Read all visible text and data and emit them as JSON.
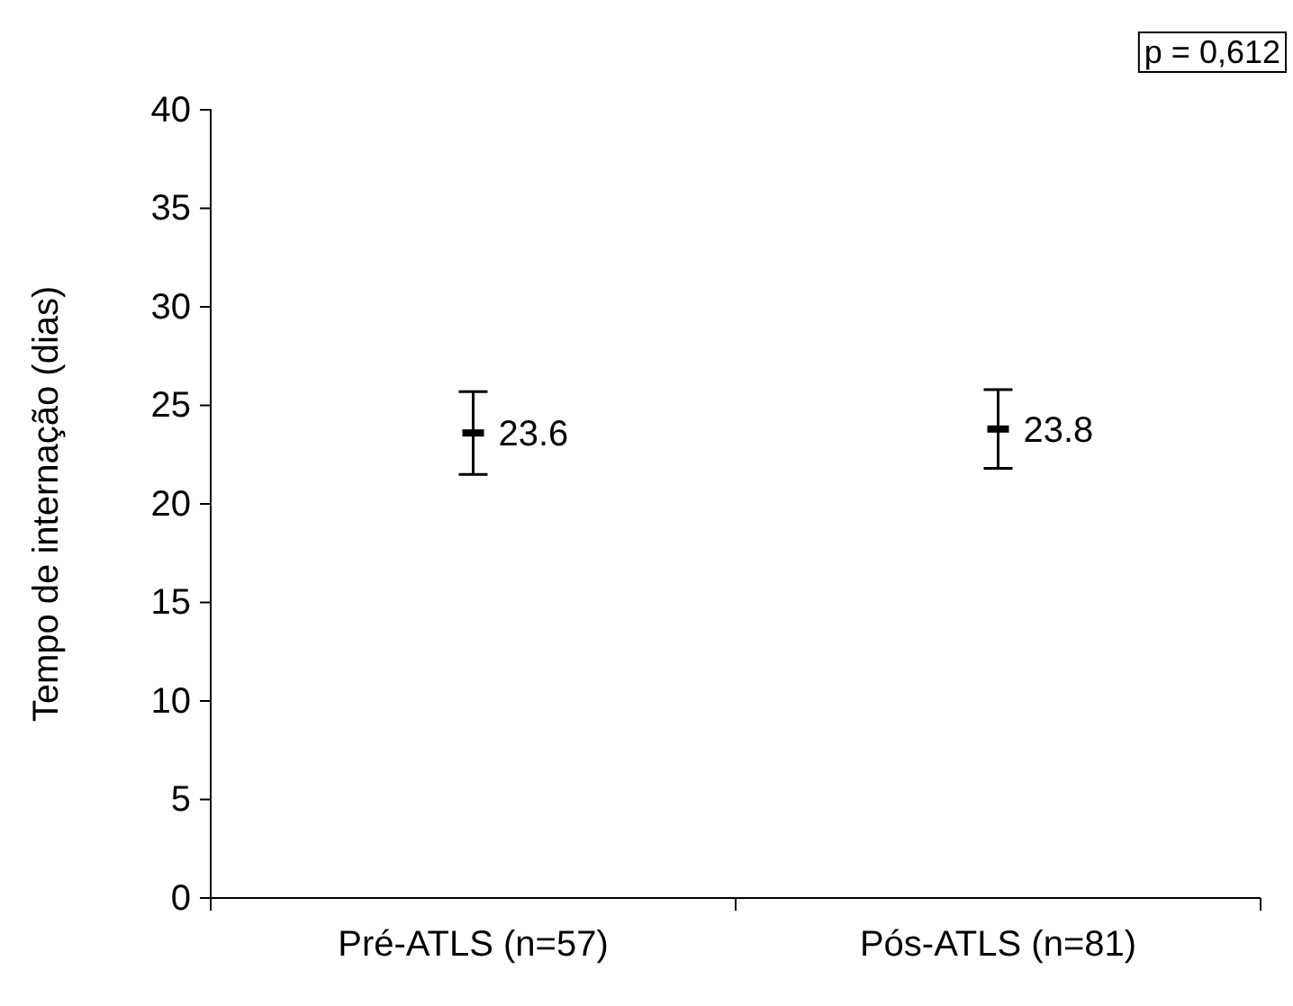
{
  "chart_data": {
    "type": "scatter",
    "categories": [
      "Pré-ATLS (n=57)",
      "Pós-ATLS (n=81)"
    ],
    "values": [
      23.6,
      23.8
    ],
    "errors": [
      2.1,
      2.0
    ],
    "color": "#000000",
    "ylabel": "Tempo de internação (dias)",
    "ylim": [
      0,
      40
    ],
    "yticks": [
      0,
      5,
      10,
      15,
      20,
      25,
      30,
      35,
      40
    ],
    "data_labels": true,
    "grid": false,
    "annotations": [
      "p = 0,612"
    ]
  }
}
